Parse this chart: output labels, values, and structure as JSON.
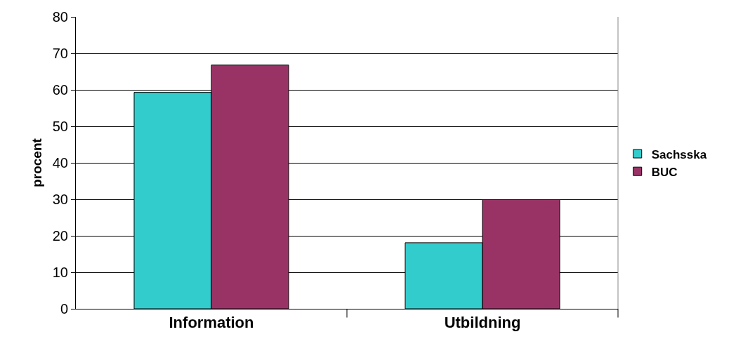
{
  "chart_data": {
    "type": "bar",
    "ylabel": "procent",
    "categories": [
      "Information",
      "Utbildning"
    ],
    "series": [
      {
        "name": "Sachsska",
        "color": "#33cccc",
        "values": [
          59.3,
          18.1
        ]
      },
      {
        "name": "BUC",
        "color": "#993366",
        "values": [
          66.8,
          29.9
        ]
      }
    ],
    "ylim": [
      0,
      80
    ],
    "yticks": [
      0,
      10,
      20,
      30,
      40,
      50,
      60,
      70,
      80
    ],
    "grid": "y",
    "legend": "right"
  }
}
